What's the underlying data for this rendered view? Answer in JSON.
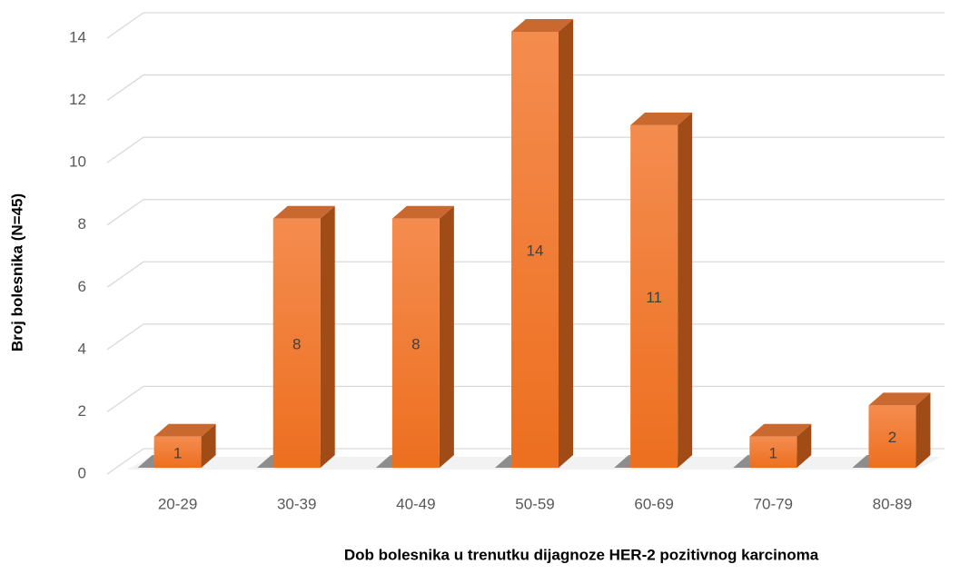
{
  "chart_data": {
    "type": "bar",
    "categories": [
      "20-29",
      "30-39",
      "40-49",
      "50-59",
      "60-69",
      "70-79",
      "80-89"
    ],
    "values": [
      1,
      8,
      8,
      14,
      11,
      1,
      2
    ],
    "color": "#f07a2a",
    "ylim": [
      0,
      14
    ],
    "yticks": [
      0,
      2,
      4,
      6,
      8,
      10,
      12,
      14
    ],
    "grid": true,
    "xlabel": "Dob bolesnika u trenutku dijagnoze HER-2 pozitivnog karcinoma",
    "ylabel": "Broj bolesnika (N=45)"
  }
}
